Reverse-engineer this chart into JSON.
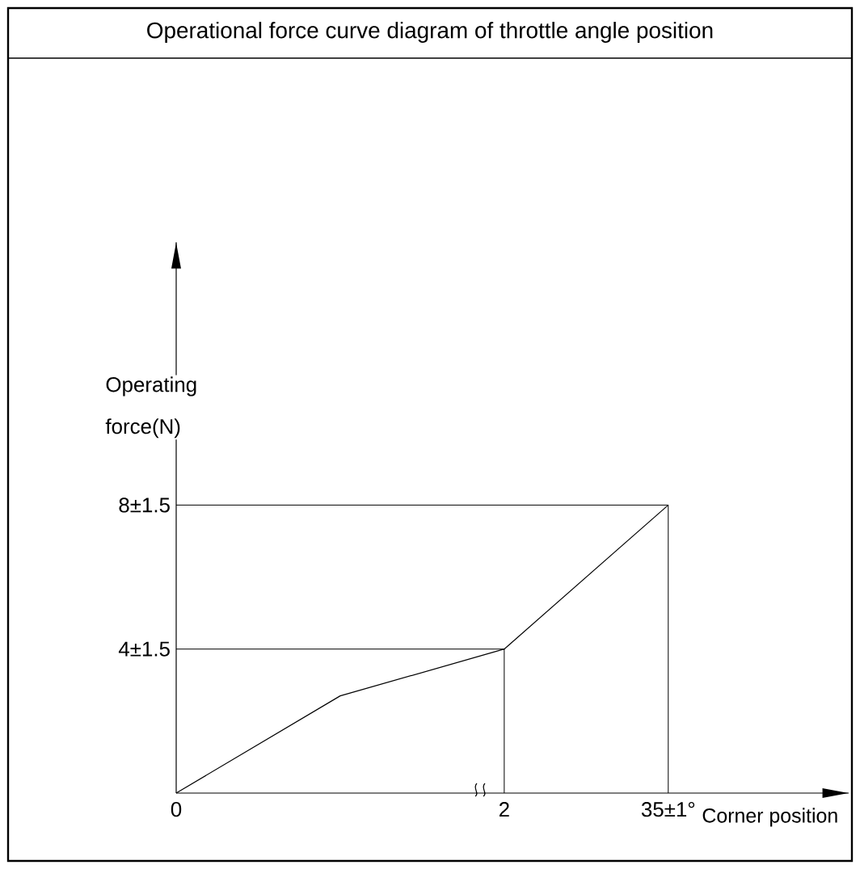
{
  "chart_data": {
    "type": "line",
    "title": "Operational force curve diagram of throttle angle position",
    "xlabel": "Corner position",
    "ylabel": "Operating force(N)",
    "categories": [
      "0",
      null,
      "2",
      "35±1°"
    ],
    "series": [
      {
        "color": "#000000",
        "values": [
          0,
          2.7,
          4,
          8
        ]
      }
    ],
    "ylim": [
      0,
      15.3
    ],
    "tick_labels": "x",
    "ref_lines": [
      {
        "axis": "y",
        "value": 4,
        "label": "4±1.5",
        "color": "#000000"
      },
      {
        "axis": "y",
        "value": 8,
        "label": "8±1.5",
        "color": "#000000"
      },
      {
        "axis": "x",
        "value": "2",
        "color": "#000000"
      },
      {
        "axis": "x",
        "value": "35±1°",
        "color": "#000000"
      }
    ],
    "marker": "none",
    "line_style": "solid"
  }
}
